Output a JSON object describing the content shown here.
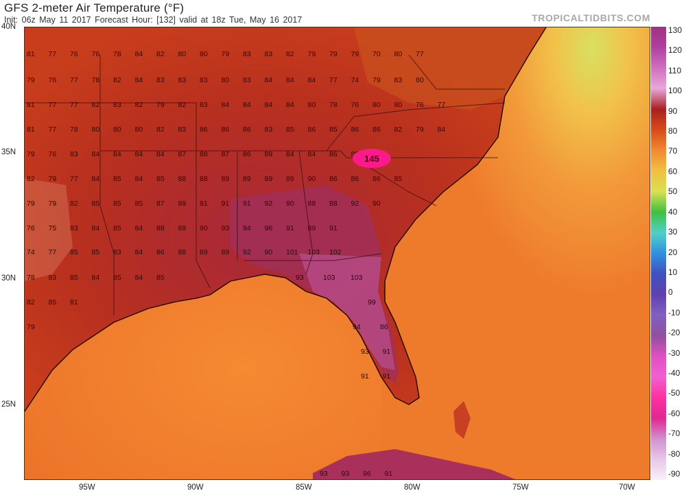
{
  "header": {
    "title": "GFS 2-meter Air Temperature (°F)",
    "subtitle": "Init: 06z May 11 2017   Forecast Hour: [132]   valid at 18z Tue, May 16 2017",
    "brand": "TROPICALTIDBITS.COM"
  },
  "lat_labels": [
    "40N",
    "35N",
    "30N",
    "25N"
  ],
  "lon_labels": [
    "95W",
    "90W",
    "85W",
    "80W",
    "75W",
    "70W"
  ],
  "colorbar": {
    "labels": [
      "130",
      "120",
      "110",
      "100",
      "90",
      "80",
      "70",
      "60",
      "50",
      "40",
      "30",
      "20",
      "10",
      "0",
      "-10",
      "-20",
      "-30",
      "-40",
      "-50",
      "-60",
      "-70",
      "-80",
      "-90"
    ],
    "colors": [
      "#a03080",
      "#b040a0",
      "#d070c0",
      "#e8a8d8",
      "#a82020",
      "#d84a18",
      "#f08a30",
      "#f0c040",
      "#d8e050",
      "#40c040",
      "#50d0c8",
      "#3090e0",
      "#4050c0",
      "#6040b0",
      "#8060c0",
      "#9050a0",
      "#e050c0",
      "#f060d0",
      "#ff30a0",
      "#e02890",
      "#d090d0",
      "#e8c8e8",
      "#f8f0f8"
    ]
  },
  "highlight": {
    "value": "145",
    "color": "#ff1a8c"
  },
  "temps": [
    [
      "81",
      "77",
      "76",
      "76",
      "78",
      "84",
      "82",
      "80",
      "80",
      "79",
      "83",
      "83",
      "82",
      "79",
      "79",
      "79",
      "70",
      "80",
      "77"
    ],
    [
      "79",
      "76",
      "77",
      "78",
      "82",
      "84",
      "83",
      "83",
      "83",
      "80",
      "83",
      "84",
      "84",
      "84",
      "77",
      "74",
      "79",
      "83",
      "80"
    ],
    [
      "81",
      "77",
      "77",
      "82",
      "83",
      "82",
      "79",
      "82",
      "83",
      "84",
      "84",
      "84",
      "84",
      "80",
      "78",
      "76",
      "80",
      "80",
      "76",
      "77"
    ],
    [
      "81",
      "77",
      "78",
      "80",
      "80",
      "80",
      "82",
      "83",
      "86",
      "86",
      "86",
      "83",
      "85",
      "86",
      "85",
      "86",
      "86",
      "82",
      "79",
      "84"
    ],
    [
      "79",
      "76",
      "83",
      "84",
      "84",
      "84",
      "84",
      "87",
      "88",
      "87",
      "86",
      "89",
      "84",
      "84",
      "86",
      "85"
    ],
    [
      "82",
      "79",
      "77",
      "84",
      "85",
      "84",
      "85",
      "88",
      "88",
      "89",
      "89",
      "89",
      "89",
      "90",
      "86",
      "86",
      "86",
      "85"
    ],
    [
      "79",
      "79",
      "82",
      "85",
      "85",
      "85",
      "87",
      "89",
      "91",
      "91",
      "91",
      "92",
      "90",
      "88",
      "88",
      "92",
      "90"
    ],
    [
      "76",
      "75",
      "83",
      "84",
      "85",
      "84",
      "88",
      "89",
      "90",
      "93",
      "94",
      "96",
      "91",
      "89",
      "91"
    ],
    [
      "74",
      "77",
      "85",
      "85",
      "83",
      "84",
      "86",
      "88",
      "89",
      "89",
      "92",
      "90",
      "101",
      "103",
      "102"
    ],
    [
      "78",
      "83",
      "85",
      "84",
      "85",
      "84",
      "85",
      "93",
      "103",
      "103"
    ],
    [
      "82",
      "85",
      "81",
      "99"
    ],
    [
      "79",
      "94",
      "86"
    ],
    [
      "93",
      "91"
    ],
    [
      "91",
      "91"
    ],
    [
      "93",
      "93",
      "96",
      "91"
    ]
  ]
}
